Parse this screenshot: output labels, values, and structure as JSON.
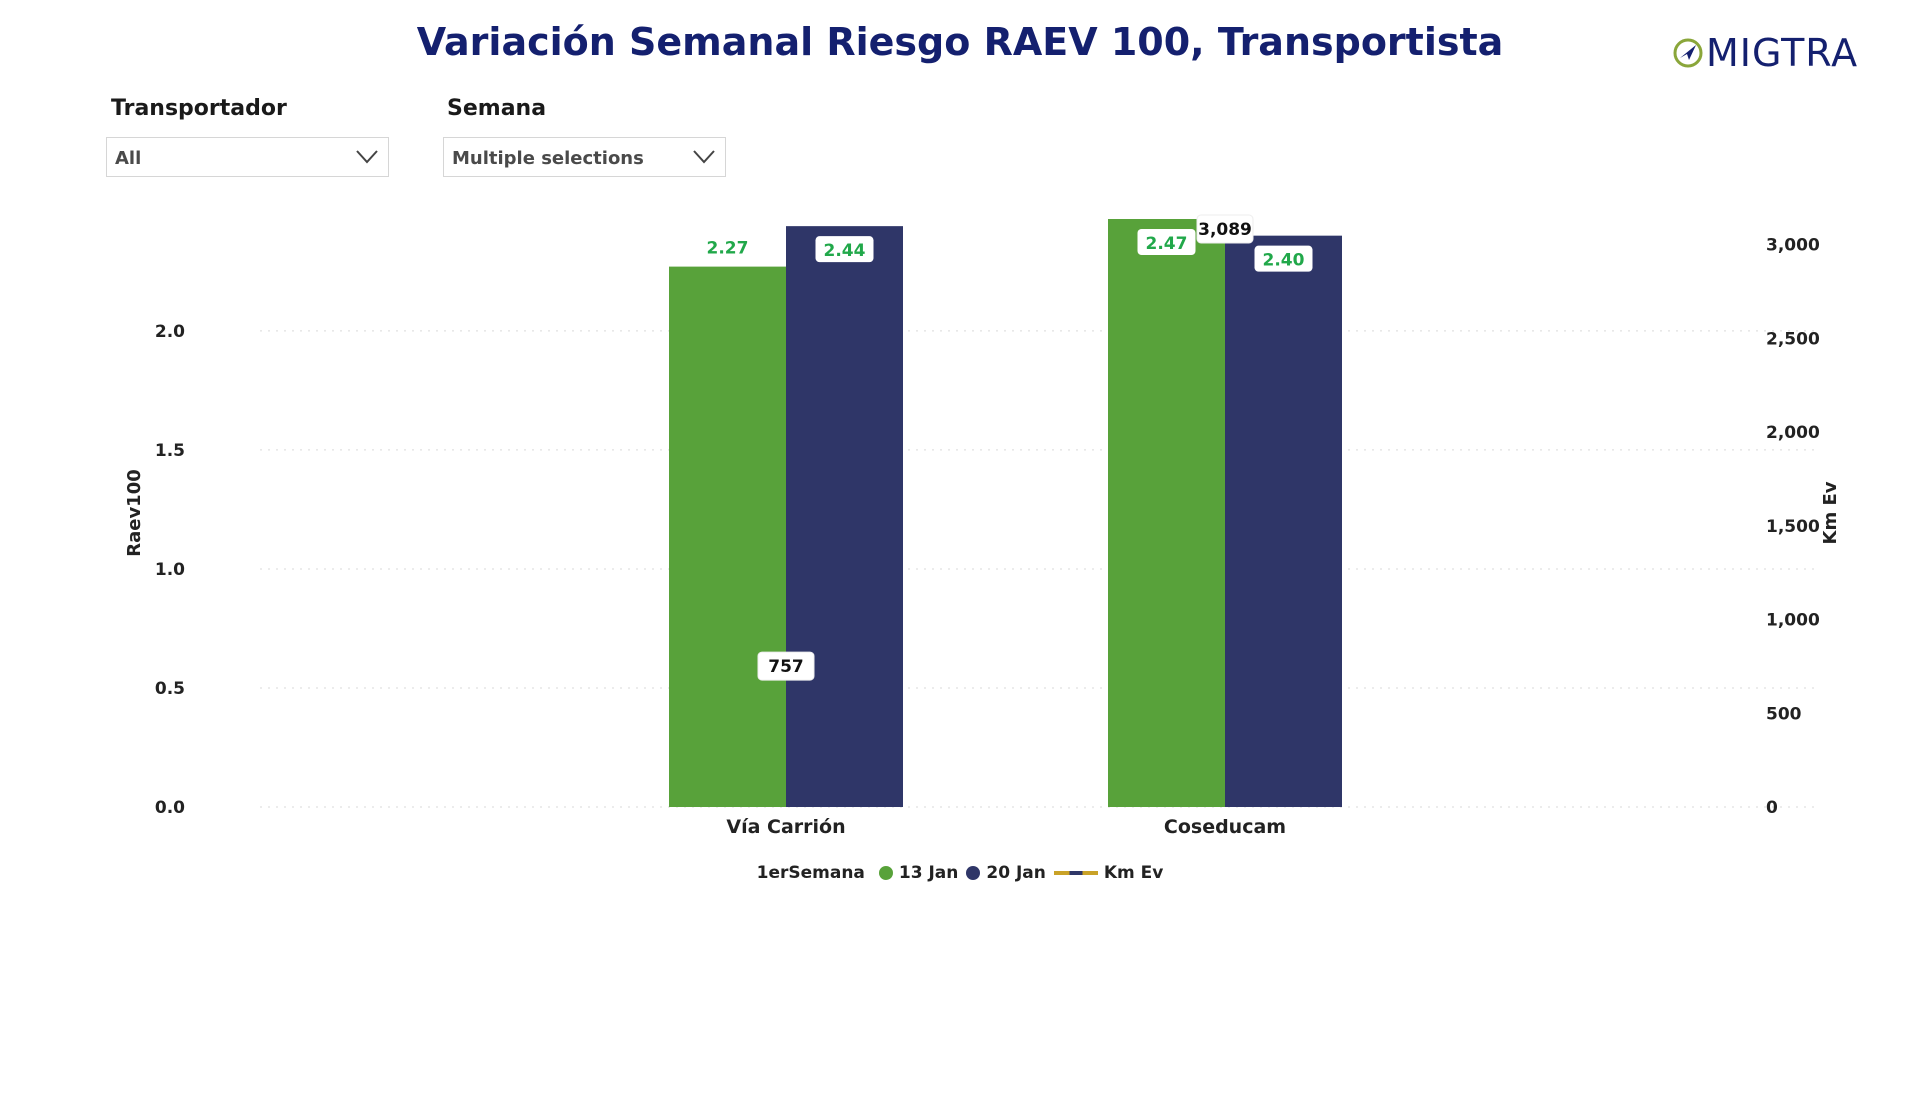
{
  "title": "Variación Semanal Riesgo RAEV 100, Transportista",
  "logo": {
    "text": "MIGTRA"
  },
  "filters": {
    "transportador": {
      "label": "Transportador",
      "value": "All"
    },
    "semana": {
      "label": "Semana",
      "value": "Multiple selections"
    }
  },
  "colors": {
    "series1": "#58a23a",
    "series2": "#2f3668",
    "label_green": "#21a84a",
    "title": "#14206f",
    "line": "#c9a227"
  },
  "legend": {
    "title": "1erSemana",
    "s1": "13 Jan",
    "s2": "20 Jan",
    "line": "Km Ev"
  },
  "chart_data": {
    "type": "bar",
    "categories": [
      "Vía Carrión",
      "Coseducam"
    ],
    "series": [
      {
        "name": "13 Jan",
        "values": [
          2.27,
          2.47
        ]
      },
      {
        "name": "20 Jan",
        "values": [
          2.44,
          2.4
        ]
      }
    ],
    "line_series": {
      "name": "Km Ev",
      "values": [
        757,
        3089
      ]
    },
    "ylabel": "Raev100",
    "y2label": "Km Ev",
    "ylim": [
      0,
      2.47
    ],
    "y2lim": [
      0,
      3137
    ],
    "yticks": [
      "0.0",
      "0.5",
      "1.0",
      "1.5",
      "2.0"
    ],
    "yticks_values": [
      0,
      0.5,
      1.0,
      1.5,
      2.0
    ],
    "y2ticks": [
      "0",
      "500",
      "1,000",
      "1,500",
      "2,000",
      "2,500",
      "3,000"
    ],
    "y2ticks_values": [
      0,
      500,
      1000,
      1500,
      2000,
      2500,
      3000
    ],
    "data_labels": {
      "s1": [
        "2.27",
        "2.47"
      ],
      "s2": [
        "2.44",
        "2.40"
      ],
      "line": [
        "757",
        "3,089"
      ]
    },
    "grid": true
  }
}
